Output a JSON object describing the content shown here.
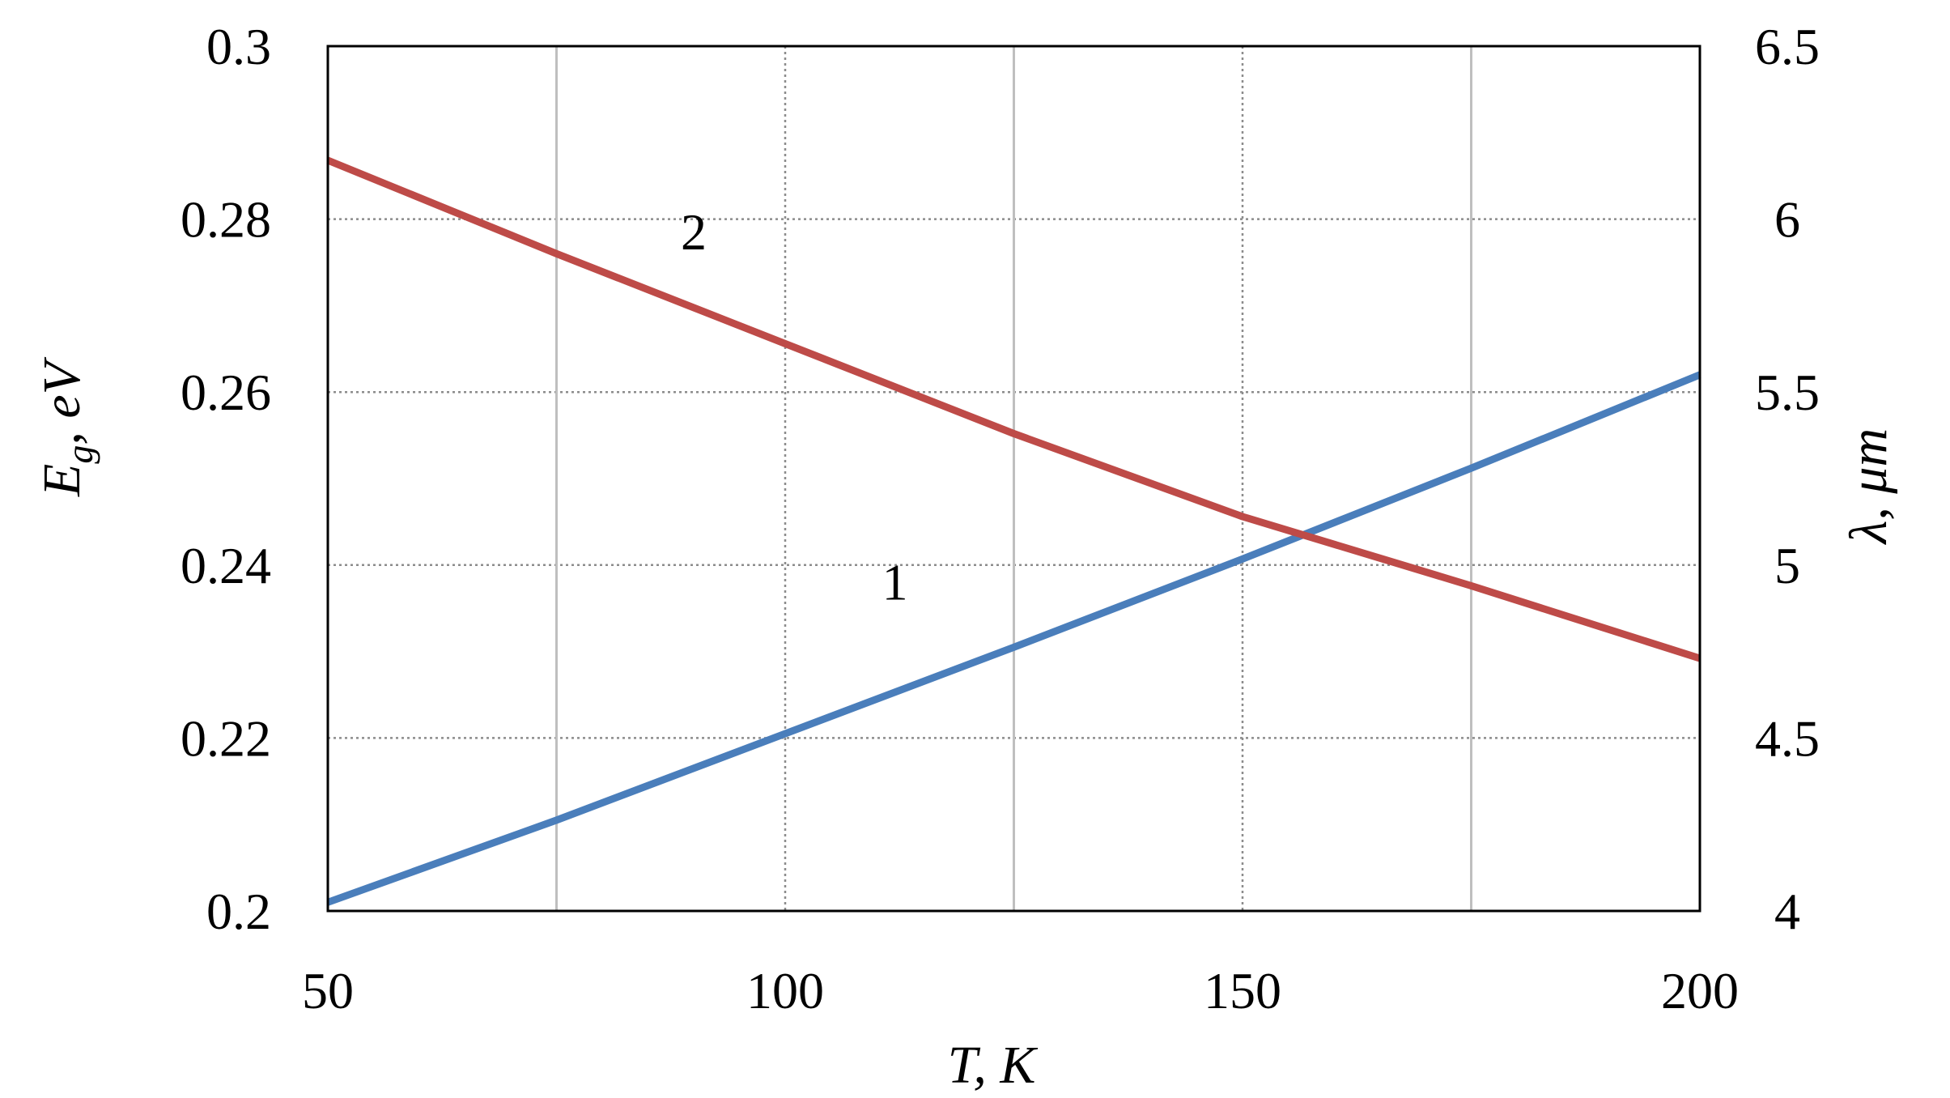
{
  "chart_data": {
    "type": "line",
    "x_axis": {
      "label": "T, K",
      "range": [
        50,
        200
      ],
      "ticks": [
        50,
        100,
        150,
        200
      ],
      "tick_labels": [
        "50",
        "100",
        "150",
        "200"
      ],
      "minor_gridlines": [
        75,
        125,
        175
      ]
    },
    "y_axis_left": {
      "label_main": "E",
      "label_sub": "g",
      "label_rest": ", eV",
      "range": [
        0.2,
        0.3
      ],
      "ticks": [
        0.2,
        0.22,
        0.24,
        0.26,
        0.28,
        0.3
      ],
      "tick_labels": [
        "0.2",
        "0.22",
        "0.24",
        "0.26",
        "0.28",
        "0.3"
      ]
    },
    "y_axis_right": {
      "label": "λ, μm",
      "range": [
        4,
        6.5
      ],
      "ticks": [
        4,
        4.5,
        5,
        5.5,
        6,
        6.5
      ],
      "tick_labels": [
        "4",
        "4.5",
        "5",
        "5.5",
        "6",
        "6.5"
      ]
    },
    "grid": true,
    "series": [
      {
        "name": "1",
        "axis": "left",
        "color": "#4a7ebb",
        "x": [
          50,
          75,
          100,
          125,
          150,
          175,
          200
        ],
        "y": [
          0.201,
          0.2105,
          0.2205,
          0.2305,
          0.2407,
          0.2512,
          0.262
        ]
      },
      {
        "name": "2",
        "axis": "right",
        "color": "#be4b48",
        "x": [
          50,
          75,
          100,
          125,
          150,
          175,
          200
        ],
        "y": [
          6.17,
          5.9,
          5.64,
          5.38,
          5.14,
          4.94,
          4.73
        ]
      }
    ],
    "curve_labels": [
      {
        "text": "1",
        "x": 112,
        "y_left": 0.236
      },
      {
        "text": "2",
        "x": 90,
        "y_left": 0.2765
      }
    ]
  }
}
